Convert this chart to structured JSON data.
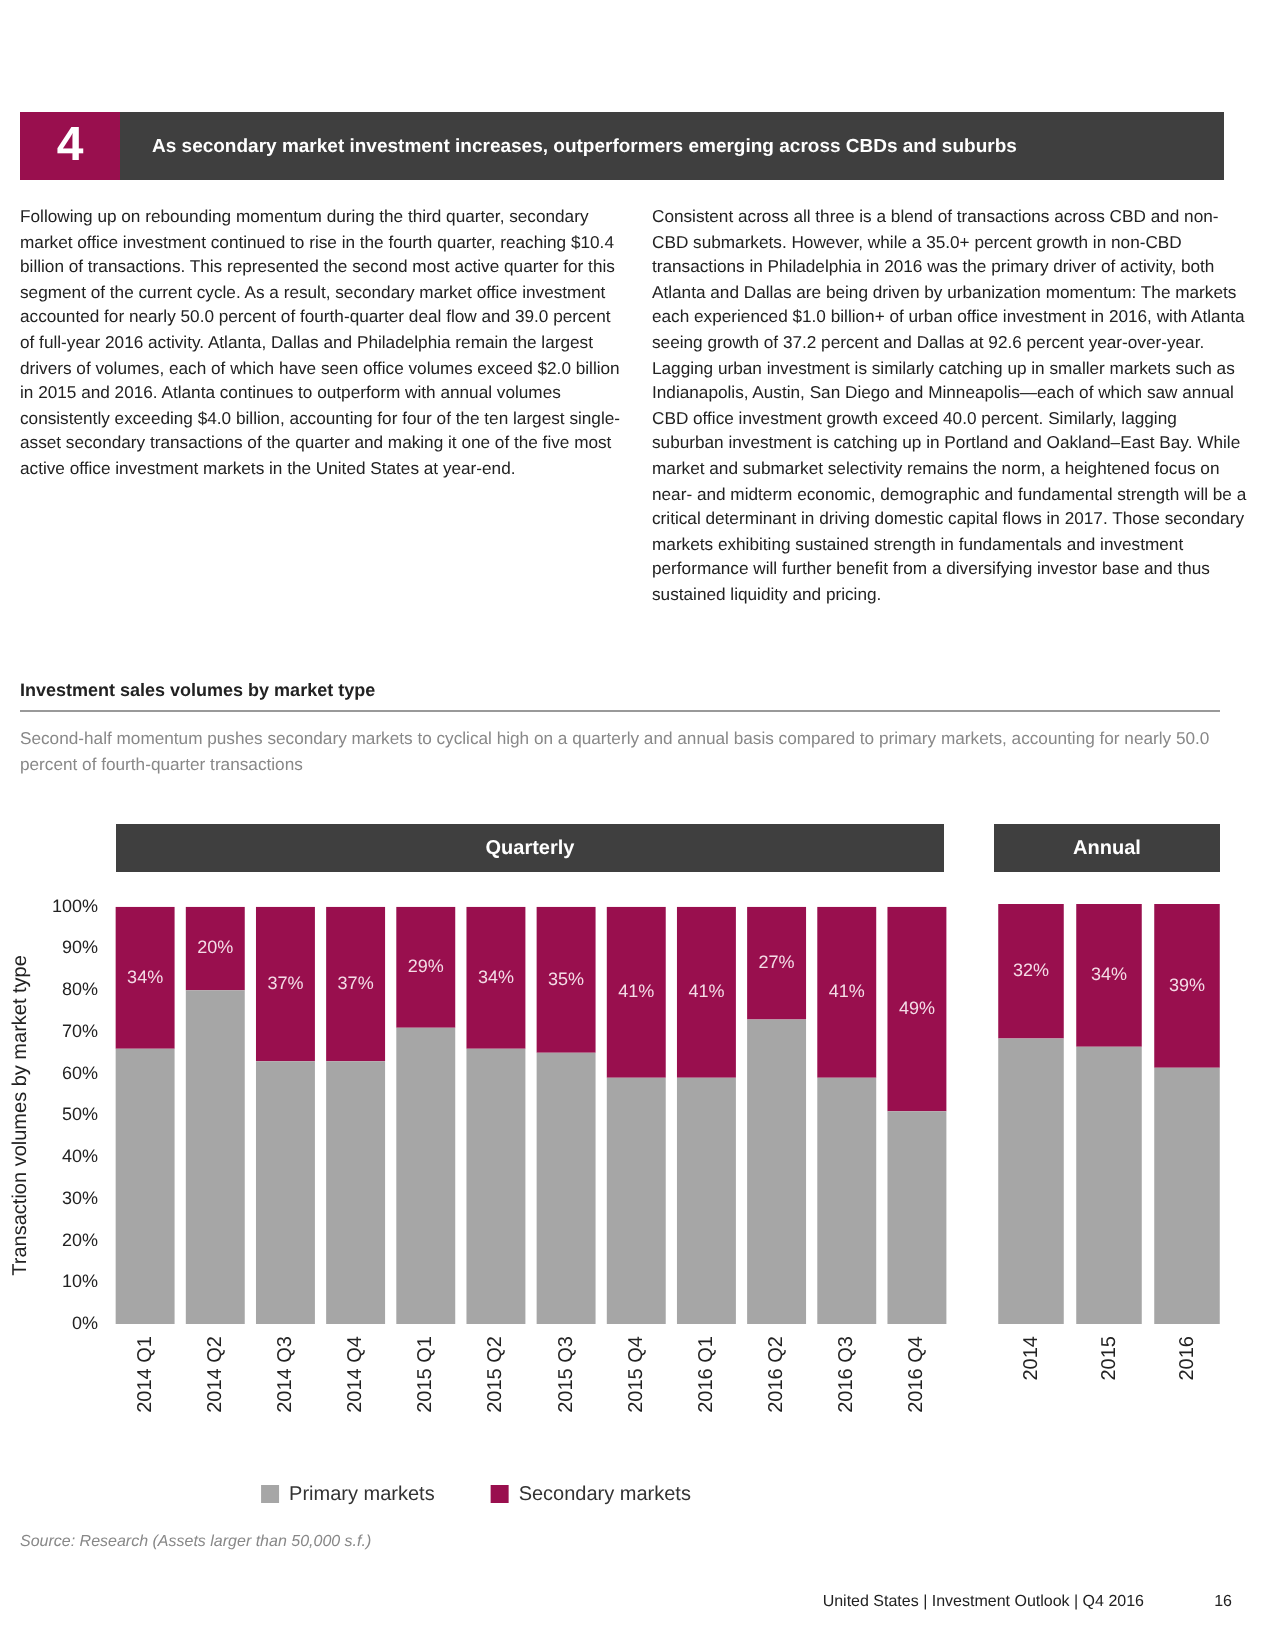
{
  "chart_data": [
    {
      "type": "bar",
      "title": "Quarterly",
      "ylabel": "Transaction volumes by market type",
      "categories": [
        "2014 Q1",
        "2014 Q2",
        "2014 Q3",
        "2014 Q4",
        "2015 Q1",
        "2015 Q2",
        "2015 Q3",
        "2015 Q4",
        "2016 Q1",
        "2016 Q2",
        "2016 Q3",
        "2016 Q4"
      ],
      "series": [
        {
          "name": "Primary markets",
          "color": "#a6a6a6",
          "values": [
            66,
            80,
            63,
            63,
            71,
            66,
            65,
            59,
            59,
            73,
            59,
            51
          ]
        },
        {
          "name": "Secondary markets",
          "color": "#990f4e",
          "values": [
            34,
            20,
            37,
            37,
            29,
            34,
            35,
            41,
            41,
            27,
            41,
            49
          ],
          "value_labels": [
            "34%",
            "20%",
            "37%",
            "37%",
            "29%",
            "34%",
            "35%",
            "41%",
            "41%",
            "27%",
            "41%",
            "49%"
          ]
        }
      ],
      "stacked": true,
      "ylim": [
        0,
        100
      ],
      "yticks": [
        {
          "value": 0,
          "label": "0%"
        },
        {
          "value": 10,
          "label": "10%"
        },
        {
          "value": 20,
          "label": "20%"
        },
        {
          "value": 30,
          "label": "30%"
        },
        {
          "value": 40,
          "label": "40%"
        },
        {
          "value": 50,
          "label": "50%"
        },
        {
          "value": 60,
          "label": "60%"
        },
        {
          "value": 70,
          "label": "70%"
        },
        {
          "value": 80,
          "label": "80%"
        },
        {
          "value": 90,
          "label": "90%"
        },
        {
          "value": 100,
          "label": "100%"
        }
      ],
      "legend": "bottom",
      "annotations": [
        "4",
        "As secondary market investment increases, outperformers emerging across CBDs and suburbs",
        "Following up on rebounding momentum during the third quarter, secondary market office investment continued to rise in the fourth quarter, reaching $10.4 billion of transactions. This represented the second most active quarter for this segment of the current cycle. As a result, secondary market office investment accounted for nearly 50.0 percent of fourth-quarter deal flow and 39.0 percent of full-year 2016 activity. Atlanta, Dallas and Philadelphia remain the largest drivers of volumes, each of which have seen office volumes exceed $2.0 billion in 2015 and 2016. Atlanta continues to outperform with annual volumes consistently exceeding $4.0 billion, accounting for four of the ten largest single-asset secondary transactions of the quarter and making it one of the five most active office investment markets in the United States at year-end.",
        "Consistent across all three is a blend of transactions across CBD and non-CBD submarkets. However, while a 35.0+ percent growth in non-CBD transactions in Philadelphia in 2016 was the primary driver of activity, both Atlanta and Dallas are being driven by urbanization momentum: The markets each experienced $1.0 billion+ of urban office investment in 2016, with Atlanta seeing growth of 37.2 percent and Dallas at 92.6 percent year-over-year. Lagging urban investment is similarly catching up in smaller markets such as Indianapolis, Austin, San Diego and Minneapolis—each of which saw annual CBD office investment growth exceed 40.0 percent. Similarly, lagging suburban investment is catching up in Portland and Oakland–East Bay. While market and submarket selectivity remains the norm, a heightened focus on near- and midterm economic, demographic and fundamental strength will be a critical determinant in driving domestic capital flows in 2017. Those secondary markets exhibiting sustained strength in fundamentals and investment performance will further benefit from a diversifying investor base and thus sustained liquidity and pricing.",
        "Investment sales volumes by market type",
        "Second-half momentum pushes secondary markets to cyclical high on a quarterly and annual basis compared to primary markets, accounting for nearly 50.0 percent of fourth-quarter transactions",
        "Source: Research (Assets larger than 50,000 s.f.)",
        "United States | Investment Outlook | Q4 2016",
        "16"
      ]
    },
    {
      "type": "bar",
      "title": "Annual",
      "categories": [
        "2014",
        "2015",
        "2016"
      ],
      "series": [
        {
          "color": "#a6a6a6",
          "values": [
            68,
            66,
            61
          ]
        },
        {
          "color": "#990f4e",
          "values": [
            32,
            34,
            39
          ],
          "value_labels": [
            "32%",
            "34%",
            "39%"
          ]
        }
      ],
      "stacked": true,
      "ylim": [
        0,
        100
      ],
      "tick_labels": "x"
    }
  ]
}
